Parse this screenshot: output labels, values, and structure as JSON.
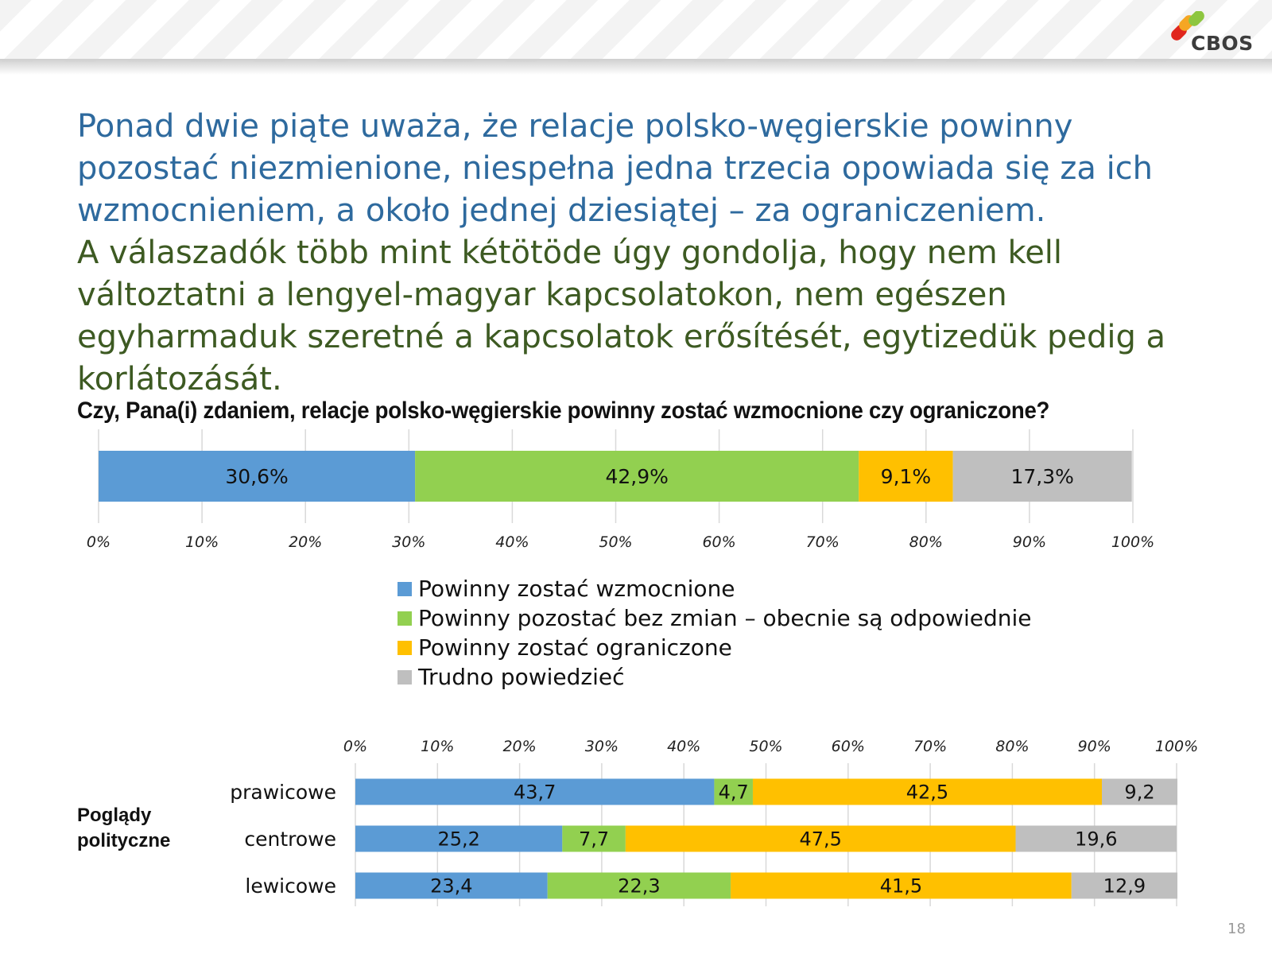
{
  "logo": {
    "text": "CBOS",
    "colors": [
      "#e0261d",
      "#f5a623",
      "#8dc63f"
    ]
  },
  "headline": {
    "polish": "Ponad dwie piąte uważa, że relacje polsko-węgierskie powinny pozostać niezmienione, niespełna jedna trzecia opowiada się za ich wzmocnieniem, a około jednej dziesiątej – za ograniczeniem.",
    "hungarian": "A válaszadók több mint kétötöde úgy gondolja, hogy nem kell változtatni a lengyel-magyar kapcsolatokon, nem egészen egyharmaduk szeretné a kapcsolatok erősítését, egytizedük pedig a korlátozását."
  },
  "question": "Czy, Pana(i) zdaniem, relacje polsko-węgierskie powinny zostać wzmocnione czy ograniczone?",
  "legend": [
    {
      "label": "Powinny zostać wzmocnione",
      "color": "#5b9bd5"
    },
    {
      "label": "Powinny pozostać bez zmian – obecnie są odpowiednie",
      "color": "#92d050"
    },
    {
      "label": "Powinny zostać ograniczone",
      "color": "#ffc000"
    },
    {
      "label": "Trudno powiedzieć",
      "color": "#bfbfbf"
    }
  ],
  "group_label": "Poglądy polityczne",
  "page_number": "18",
  "chart_data": [
    {
      "type": "bar",
      "orientation": "horizontal",
      "stacked": "percent",
      "categories": [
        ""
      ],
      "series": [
        {
          "name": "Powinny zostać wzmocnione",
          "values": [
            30.6
          ],
          "labels": [
            "30,6%"
          ],
          "color": "#5b9bd5"
        },
        {
          "name": "Powinny pozostać bez zmian – obecnie są odpowiednie",
          "values": [
            42.9
          ],
          "labels": [
            "42,9%"
          ],
          "color": "#92d050"
        },
        {
          "name": "Powinny zostać ograniczone",
          "values": [
            9.1
          ],
          "labels": [
            "9,1%"
          ],
          "color": "#ffc000"
        },
        {
          "name": "Trudno powiedzieć",
          "values": [
            17.3
          ],
          "labels": [
            "17,3%"
          ],
          "color": "#bfbfbf"
        }
      ],
      "x_ticks": [
        "0%",
        "10%",
        "20%",
        "30%",
        "40%",
        "50%",
        "60%",
        "70%",
        "80%",
        "90%",
        "100%"
      ],
      "xlim": [
        0,
        100
      ],
      "axis_position": "bottom",
      "grid": true,
      "legend_position": "bottom"
    },
    {
      "type": "bar",
      "orientation": "horizontal",
      "stacked": "percent",
      "categories": [
        "prawicowe",
        "centrowe",
        "lewicowe"
      ],
      "series": [
        {
          "name": "Powinny zostać wzmocnione",
          "values": [
            43.7,
            25.2,
            23.4
          ],
          "labels": [
            "43,7",
            "25,2",
            "23,4"
          ],
          "color": "#5b9bd5"
        },
        {
          "name": "Powinny pozostać bez zmian – obecnie są odpowiednie",
          "values": [
            4.7,
            7.7,
            22.3
          ],
          "labels": [
            "4,7",
            "7,7",
            "22,3"
          ],
          "color": "#92d050"
        },
        {
          "name": "Powinny zostać ograniczone",
          "values": [
            42.5,
            47.5,
            41.5
          ],
          "labels": [
            "42,5",
            "47,5",
            "41,5"
          ],
          "color": "#ffc000"
        },
        {
          "name": "Trudno powiedzieć",
          "values": [
            9.2,
            19.6,
            12.9
          ],
          "labels": [
            "9,2",
            "19,6",
            "12,9"
          ],
          "color": "#bfbfbf"
        }
      ],
      "x_ticks": [
        "0%",
        "10%",
        "20%",
        "30%",
        "40%",
        "50%",
        "60%",
        "70%",
        "80%",
        "90%",
        "100%"
      ],
      "xlim": [
        0,
        100
      ],
      "axis_position": "top",
      "grid": true
    }
  ]
}
